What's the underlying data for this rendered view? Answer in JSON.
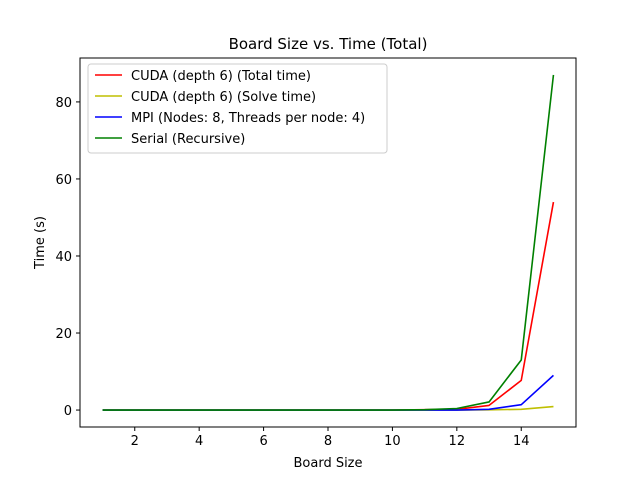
{
  "chart_data": {
    "type": "line",
    "title": "Board Size vs. Time (Total)",
    "xlabel": "Board Size",
    "ylabel": "Time (s)",
    "xlim": [
      0.3,
      15.7
    ],
    "ylim": [
      -4.4,
      91.4
    ],
    "xticks": [
      2,
      4,
      6,
      8,
      10,
      12,
      14
    ],
    "yticks": [
      0,
      20,
      40,
      60,
      80
    ],
    "grid": false,
    "legend_position": "top-left",
    "x": [
      1,
      2,
      3,
      4,
      5,
      6,
      7,
      8,
      9,
      10,
      11,
      12,
      13,
      14,
      15
    ],
    "series": [
      {
        "name": "CUDA (depth 6) (Total time)",
        "color": "#ff0000",
        "values": [
          0,
          0,
          0,
          0,
          0,
          0,
          0,
          0,
          0,
          0,
          0.1,
          0.2,
          1.2,
          7.7,
          54
        ]
      },
      {
        "name": "CUDA (depth 6) (Solve time)",
        "color": "#bfbf00",
        "values": [
          0,
          0,
          0,
          0,
          0,
          0,
          0,
          0,
          0,
          0,
          0,
          0,
          0.05,
          0.2,
          0.9
        ]
      },
      {
        "name": "MPI (Nodes: 8, Threads per node: 4)",
        "color": "#0000ff",
        "values": [
          0,
          0,
          0,
          0,
          0,
          0,
          0,
          0,
          0,
          0,
          0,
          0,
          0.2,
          1.4,
          9
        ]
      },
      {
        "name": "Serial (Recursive)",
        "color": "#008000",
        "values": [
          0,
          0,
          0,
          0,
          0,
          0,
          0,
          0,
          0,
          0,
          0.1,
          0.4,
          2.1,
          13,
          87
        ]
      }
    ]
  }
}
